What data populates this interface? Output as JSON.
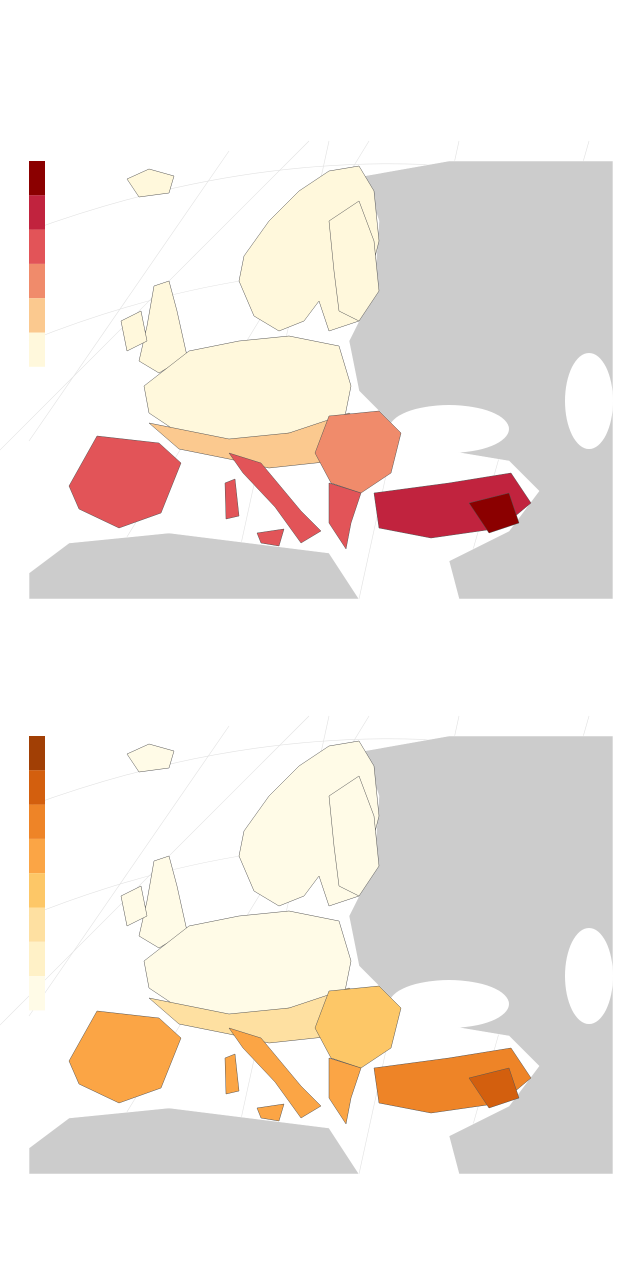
{
  "maps": [
    {
      "legend": {
        "colors": [
          "#8b0000",
          "#c1233e",
          "#e25458",
          "#f08b6b",
          "#fbc98f",
          "#fff8dc"
        ]
      }
    },
    {
      "legend": {
        "colors": [
          "#a13f05",
          "#d35f0e",
          "#ee8427",
          "#fba545",
          "#fdc767",
          "#fee0a1",
          "#fff1c7",
          "#fffbe7"
        ]
      }
    }
  ]
}
